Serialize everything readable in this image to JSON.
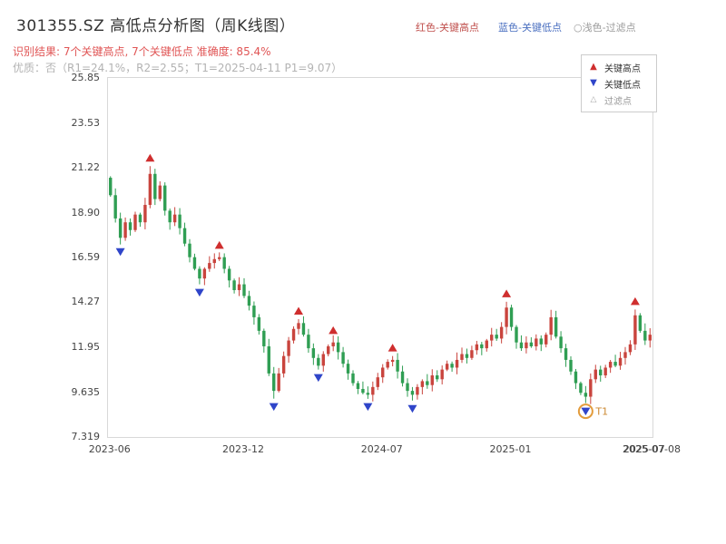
{
  "header": {
    "title": "301355.SZ 高低点分析图（周K线图）",
    "hint_high": "红色-关键高点",
    "hint_low": "蓝色-关键低点",
    "hint_filter": "○浅色-过滤点",
    "result_line": "识别结果: 7个关键高点, 7个关键低点  准确度: 85.4%",
    "quality_line": "优质：否（R1=24.1%，R2=2.55；T1=2025-04-11 P1=9.07）"
  },
  "legend": {
    "high_label": "关键高点",
    "low_label": "关键低点",
    "filter_label": "过滤点"
  },
  "colors": {
    "candle_up": "#c9443d",
    "candle_down": "#2f9e53",
    "key_high_marker": "#cf2e2e",
    "key_low_marker": "#2f45c9",
    "t1_circle": "#e39c3c",
    "t1_text": "#cc8a33",
    "axis_text": "#444444"
  },
  "chart_data": {
    "type": "candlestick",
    "interval": "weekly",
    "title": "301355.SZ 高低点分析图（周K线图）",
    "y_min": 7.319,
    "y_max": 25.85,
    "y_ticks": [
      "25.85",
      "23.53",
      "21.22",
      "18.90",
      "16.59",
      "14.27",
      "11.95",
      "9.635",
      "7.319"
    ],
    "x_ticks": [
      {
        "label": "2023-06",
        "week": 0
      },
      {
        "label": "2023-12",
        "week": 27
      },
      {
        "label": "2024-07",
        "week": 55
      },
      {
        "label": "2025-01",
        "week": 81
      },
      {
        "label": "2025-07",
        "week": 108
      }
    ],
    "end_date_label": "2025-07-08",
    "open_first": 20.7,
    "closes": [
      19.8,
      18.6,
      17.6,
      18.4,
      18.0,
      18.8,
      18.4,
      19.3,
      20.9,
      19.6,
      20.3,
      19.0,
      18.4,
      18.8,
      18.1,
      17.3,
      16.6,
      16.0,
      15.5,
      16.0,
      16.3,
      16.5,
      16.6,
      16.0,
      15.4,
      14.9,
      15.2,
      14.6,
      14.1,
      13.5,
      12.8,
      12.0,
      10.6,
      9.7,
      10.6,
      11.5,
      12.3,
      12.9,
      13.2,
      12.6,
      11.9,
      11.4,
      11.0,
      11.6,
      12.0,
      12.2,
      11.7,
      11.1,
      10.6,
      10.1,
      9.8,
      9.6,
      9.5,
      9.9,
      10.4,
      10.9,
      11.2,
      11.3,
      10.7,
      10.1,
      9.7,
      9.5,
      9.9,
      10.2,
      10.0,
      10.5,
      10.3,
      10.8,
      11.1,
      10.9,
      11.3,
      11.6,
      11.4,
      11.8,
      12.1,
      11.9,
      12.3,
      12.6,
      12.4,
      13.0,
      14.0,
      13.0,
      12.2,
      11.9,
      12.2,
      12.0,
      12.4,
      12.1,
      12.6,
      13.5,
      12.5,
      11.9,
      11.3,
      10.7,
      10.1,
      9.6,
      9.4,
      10.3,
      10.8,
      10.5,
      10.9,
      11.2,
      11.0,
      11.4,
      11.7,
      12.1,
      13.6,
      12.8,
      12.3,
      12.6
    ],
    "key_high_points": [
      {
        "week": 8,
        "price": 21.3
      },
      {
        "week": 22,
        "price": 16.8
      },
      {
        "week": 38,
        "price": 13.4
      },
      {
        "week": 45,
        "price": 12.4
      },
      {
        "week": 57,
        "price": 11.5
      },
      {
        "week": 80,
        "price": 14.3
      },
      {
        "week": 106,
        "price": 13.9
      }
    ],
    "key_low_points": [
      {
        "week": 2,
        "price": 17.3
      },
      {
        "week": 18,
        "price": 15.2
      },
      {
        "week": 33,
        "price": 9.3
      },
      {
        "week": 42,
        "price": 10.8
      },
      {
        "week": 52,
        "price": 9.3
      },
      {
        "week": 61,
        "price": 9.2
      },
      {
        "week": 96,
        "price": 9.07,
        "label": "T1",
        "circled": true
      }
    ]
  }
}
